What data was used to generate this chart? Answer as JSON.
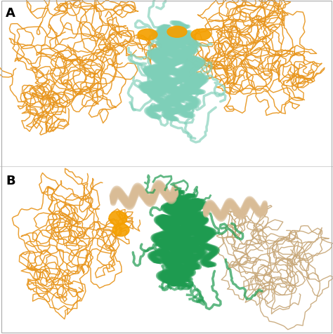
{
  "panel_A_label": "A",
  "panel_B_label": "B",
  "label_fontsize": 13,
  "label_fontweight": "bold",
  "background_color": "#ffffff",
  "figsize": [
    4.74,
    4.77
  ],
  "dpi": 100,
  "panel_A": {
    "teal_color": "#7ECFB8",
    "teal_dark": "#5BB8A0",
    "orange_color": "#E8961E",
    "orange_dark": "#CC7A00",
    "highlight_orange": "#F5A000"
  },
  "panel_B": {
    "green_color": "#1E9B50",
    "green_dark": "#157038",
    "orange_color": "#E8961E",
    "tan_color": "#C8A87A",
    "tan_light": "#D9BC96",
    "highlight_orange": "#F5A000"
  }
}
